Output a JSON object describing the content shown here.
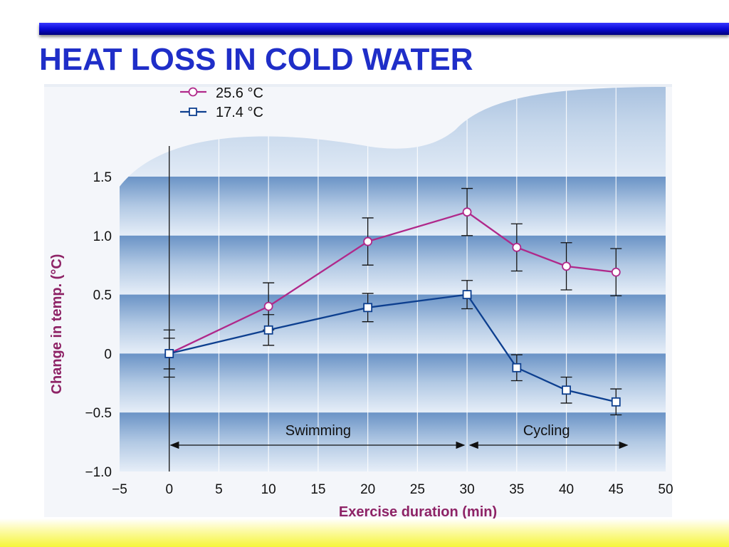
{
  "slide": {
    "title": "HEAT LOSS IN COLD WATER"
  },
  "chart_data": {
    "type": "line",
    "title": "",
    "xlabel": "Exercise duration (min)",
    "ylabel": "Change in temp. (°C)",
    "xlim": [
      -5,
      50
    ],
    "ylim": [
      -1.0,
      1.5
    ],
    "x_ticks": [
      "−5",
      "0",
      "5",
      "10",
      "15",
      "20",
      "25",
      "30",
      "35",
      "40",
      "45",
      "50"
    ],
    "y_ticks": [
      "1.5",
      "1.0",
      "0.5",
      "0",
      "−0.5",
      "−1.0"
    ],
    "legend_placement": "top-left",
    "series": [
      {
        "name": "25.6 °C",
        "color": "#b0288a",
        "marker": "circle",
        "x": [
          0,
          10,
          20,
          30,
          35,
          40,
          45
        ],
        "y": [
          0.0,
          0.4,
          0.95,
          1.2,
          0.9,
          0.74,
          0.69
        ],
        "error": [
          0.2,
          0.2,
          0.2,
          0.2,
          0.2,
          0.2,
          0.2
        ]
      },
      {
        "name": "17.4 °C",
        "color": "#0d3f8f",
        "marker": "square",
        "x": [
          0,
          10,
          20,
          30,
          35,
          40,
          45
        ],
        "y": [
          0.0,
          0.2,
          0.39,
          0.5,
          -0.12,
          -0.31,
          -0.41
        ],
        "error": [
          0.13,
          0.13,
          0.12,
          0.12,
          0.11,
          0.11,
          0.11
        ]
      }
    ],
    "annotations": [
      {
        "text": "Swimming",
        "x_from": 0,
        "x_to": 30
      },
      {
        "text": "Cycling",
        "x_from": 30,
        "x_to": 46
      }
    ]
  }
}
